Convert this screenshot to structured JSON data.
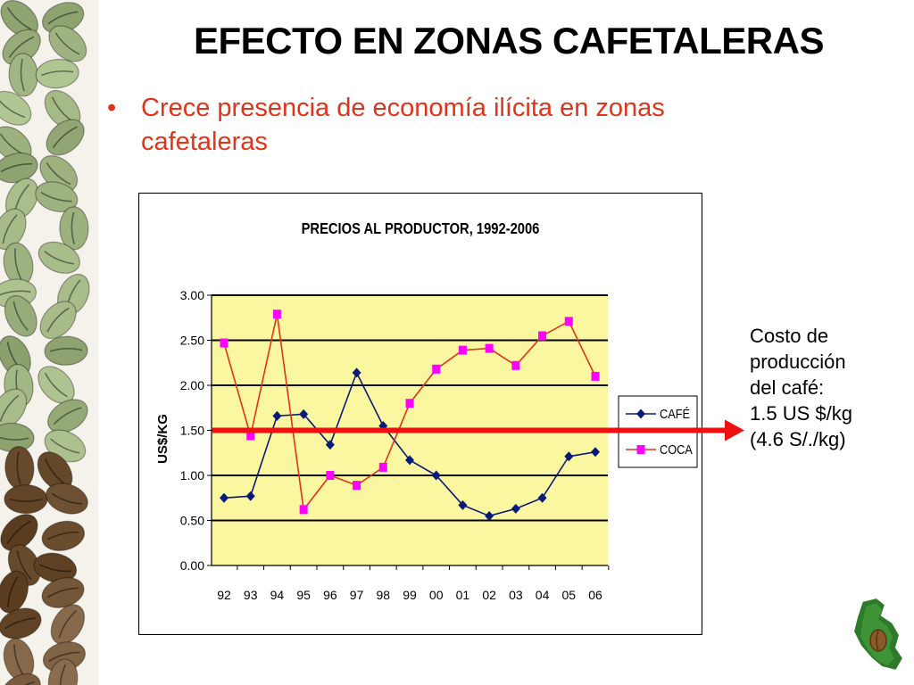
{
  "slide": {
    "title": "EFECTO EN ZONAS CAFETALERAS",
    "bullet": "Crece presencia de economía ilícita en zonas cafetaleras",
    "note_lines": [
      "Costo de",
      "producción",
      "del café:",
      "1.5 US $/kg",
      "(4.6 S/./kg)"
    ]
  },
  "chart_data": {
    "type": "line",
    "title": "PRECIOS AL PRODUCTOR, 1992-2006",
    "ylabel": "US$/KG",
    "xlabel": "",
    "categories": [
      "92",
      "93",
      "94",
      "95",
      "96",
      "97",
      "98",
      "99",
      "00",
      "01",
      "02",
      "03",
      "04",
      "05",
      "06"
    ],
    "y_ticks": [
      "0.00",
      "0.50",
      "1.00",
      "1.50",
      "2.00",
      "2.50",
      "3.00"
    ],
    "ylim": [
      0,
      3
    ],
    "grid": true,
    "legend_position": "right",
    "series": [
      {
        "name": "CAFÉ",
        "color": "#0a1a78",
        "marker": "diamond",
        "values": [
          0.75,
          0.77,
          1.66,
          1.68,
          1.34,
          2.14,
          1.55,
          1.17,
          1.0,
          0.67,
          0.55,
          0.63,
          0.75,
          1.21,
          1.26
        ]
      },
      {
        "name": "COCA",
        "color": "#e0341a",
        "marker_color": "#ff00ff",
        "marker": "square",
        "values": [
          2.47,
          1.44,
          2.79,
          0.62,
          1.0,
          0.89,
          1.09,
          1.8,
          2.18,
          2.39,
          2.41,
          2.22,
          2.55,
          2.71,
          2.1
        ]
      }
    ],
    "reference_line": {
      "value": 1.5,
      "color": "#ee1111"
    }
  },
  "colors": {
    "plot_bg": "#fbf7a0",
    "title_red": "#e0341a",
    "arrow_red": "#ee1111"
  },
  "icons": {
    "left_strip": "coffee-beans-decoration",
    "corner": "peru-map-logo"
  }
}
